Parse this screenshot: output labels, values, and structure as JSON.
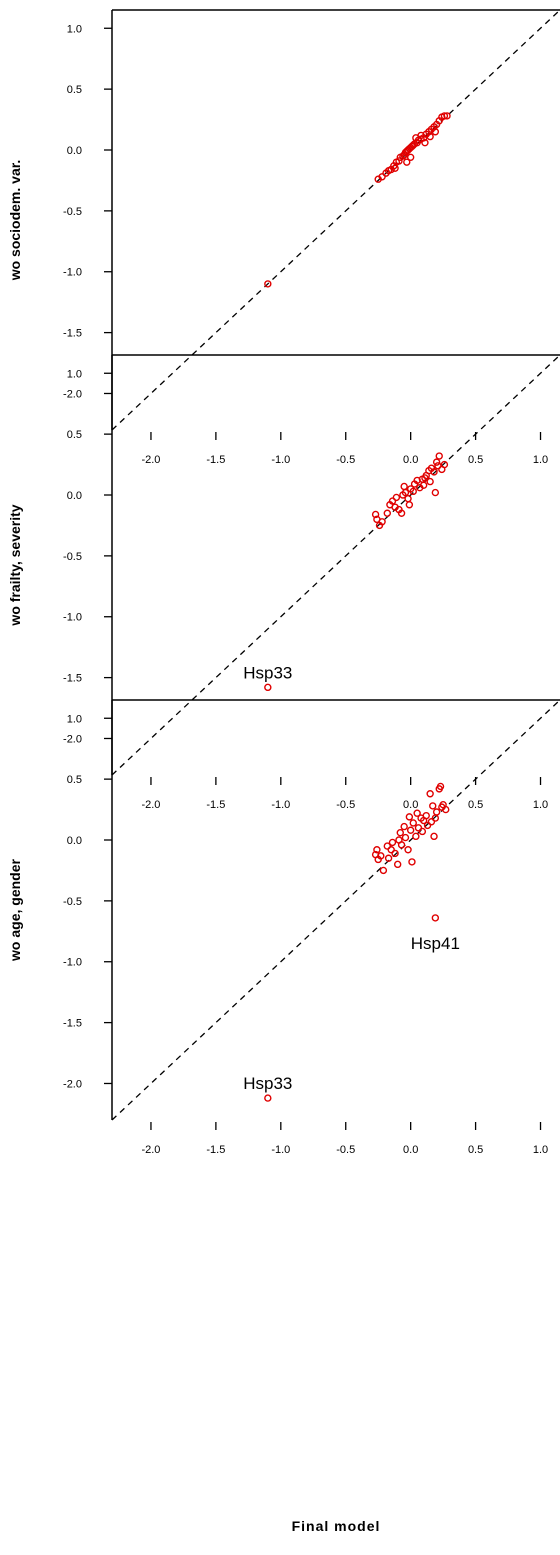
{
  "figure": {
    "xlabel": "Final model",
    "colors": {
      "points": "#e00000",
      "refline": "#000000",
      "axes": "#000000"
    }
  },
  "chart_data": [
    {
      "type": "scatter",
      "ylabel": "wo sociodem. var.",
      "xlim": [
        -2.3,
        1.15
      ],
      "ylim": [
        -2.3,
        1.15
      ],
      "xticks": [
        -2.0,
        -1.5,
        -1.0,
        -0.5,
        0.0,
        0.5,
        1.0
      ],
      "yticks": [
        1.0,
        0.5,
        0.0,
        -0.5,
        -1.0,
        -1.5,
        -2.0
      ],
      "xtick_labels": [
        "-2.0",
        "-1.5",
        "-1.0",
        "-0.5",
        "0.0",
        "0.5",
        "1.0"
      ],
      "ytick_labels": [
        "1.0",
        "0.5",
        "0.0",
        "-0.5",
        "-1.0",
        "-1.5",
        "-2.0"
      ],
      "reference_line": "y = x",
      "points": [
        [
          -1.1,
          -1.1
        ],
        [
          -0.25,
          -0.24
        ],
        [
          -0.22,
          -0.22
        ],
        [
          -0.19,
          -0.19
        ],
        [
          -0.17,
          -0.17
        ],
        [
          -0.15,
          -0.16
        ],
        [
          -0.13,
          -0.13
        ],
        [
          -0.11,
          -0.1
        ],
        [
          -0.09,
          -0.09
        ],
        [
          -0.08,
          -0.06
        ],
        [
          -0.06,
          -0.05
        ],
        [
          -0.05,
          -0.04
        ],
        [
          -0.04,
          -0.02
        ],
        [
          -0.03,
          -0.01
        ],
        [
          -0.02,
          0.0
        ],
        [
          -0.01,
          0.01
        ],
        [
          0.0,
          0.02
        ],
        [
          0.01,
          0.03
        ],
        [
          0.02,
          0.04
        ],
        [
          0.03,
          0.05
        ],
        [
          0.05,
          0.06
        ],
        [
          0.06,
          0.08
        ],
        [
          0.08,
          0.09
        ],
        [
          0.1,
          0.1
        ],
        [
          0.12,
          0.13
        ],
        [
          0.14,
          0.15
        ],
        [
          0.16,
          0.17
        ],
        [
          0.18,
          0.19
        ],
        [
          0.2,
          0.21
        ],
        [
          0.22,
          0.24
        ],
        [
          0.24,
          0.27
        ],
        [
          0.26,
          0.28
        ],
        [
          0.28,
          0.28
        ],
        [
          0.04,
          0.1
        ],
        [
          0.08,
          0.12
        ],
        [
          0.15,
          0.11
        ],
        [
          -0.03,
          -0.1
        ],
        [
          0.0,
          -0.06
        ],
        [
          -0.12,
          -0.15
        ],
        [
          0.11,
          0.06
        ],
        [
          0.19,
          0.15
        ]
      ],
      "annotations": []
    },
    {
      "type": "scatter",
      "ylabel": "wo frailty, severity",
      "xlim": [
        -2.3,
        1.15
      ],
      "ylim": [
        -2.3,
        1.15
      ],
      "xticks": [
        -2.0,
        -1.5,
        -1.0,
        -0.5,
        0.0,
        0.5,
        1.0
      ],
      "yticks": [
        1.0,
        0.5,
        0.0,
        -0.5,
        -1.0,
        -1.5,
        -2.0
      ],
      "xtick_labels": [
        "-2.0",
        "-1.5",
        "-1.0",
        "-0.5",
        "0.0",
        "0.5",
        "1.0"
      ],
      "ytick_labels": [
        "1.0",
        "0.5",
        "0.0",
        "-0.5",
        "-1.0",
        "-1.5",
        "-2.0"
      ],
      "reference_line": "y = x",
      "points": [
        [
          -1.1,
          -1.58
        ],
        [
          -0.27,
          -0.16
        ],
        [
          -0.26,
          -0.2
        ],
        [
          -0.24,
          -0.25
        ],
        [
          -0.22,
          -0.22
        ],
        [
          -0.18,
          -0.15
        ],
        [
          -0.16,
          -0.08
        ],
        [
          -0.14,
          -0.05
        ],
        [
          -0.12,
          -0.1
        ],
        [
          -0.11,
          -0.02
        ],
        [
          -0.09,
          -0.12
        ],
        [
          -0.07,
          -0.15
        ],
        [
          -0.06,
          0.0
        ],
        [
          -0.05,
          0.07
        ],
        [
          -0.04,
          0.02
        ],
        [
          -0.02,
          -0.03
        ],
        [
          0.0,
          0.05
        ],
        [
          0.02,
          0.03
        ],
        [
          0.03,
          0.09
        ],
        [
          0.05,
          0.12
        ],
        [
          0.07,
          0.06
        ],
        [
          0.09,
          0.13
        ],
        [
          0.1,
          0.08
        ],
        [
          0.12,
          0.16
        ],
        [
          0.14,
          0.2
        ],
        [
          0.15,
          0.11
        ],
        [
          0.16,
          0.22
        ],
        [
          0.18,
          0.19
        ],
        [
          0.19,
          0.02
        ],
        [
          0.2,
          0.27
        ],
        [
          0.21,
          0.24
        ],
        [
          0.22,
          0.32
        ],
        [
          0.24,
          0.21
        ],
        [
          0.26,
          0.25
        ],
        [
          0.11,
          0.14
        ],
        [
          -0.01,
          -0.08
        ]
      ],
      "annotations": [
        {
          "text": "Hsp33",
          "x": -1.1,
          "y": -1.58
        }
      ]
    },
    {
      "type": "scatter",
      "ylabel": "wo age, gender",
      "xlim": [
        -2.3,
        1.15
      ],
      "ylim": [
        -2.3,
        1.15
      ],
      "xticks": [
        -2.0,
        -1.5,
        -1.0,
        -0.5,
        0.0,
        0.5,
        1.0
      ],
      "yticks": [
        1.0,
        0.5,
        0.0,
        -0.5,
        -1.0,
        -1.5,
        -2.0
      ],
      "xtick_labels": [
        "-2.0",
        "-1.5",
        "-1.0",
        "-0.5",
        "0.0",
        "0.5",
        "1.0"
      ],
      "ytick_labels": [
        "1.0",
        "0.5",
        "0.0",
        "-0.5",
        "-1.0",
        "-1.5",
        "-2.0"
      ],
      "reference_line": "y = x",
      "points": [
        [
          -1.1,
          -2.12
        ],
        [
          0.19,
          -0.64
        ],
        [
          -0.27,
          -0.12
        ],
        [
          -0.26,
          -0.08
        ],
        [
          -0.25,
          -0.16
        ],
        [
          -0.23,
          -0.13
        ],
        [
          -0.21,
          -0.25
        ],
        [
          -0.18,
          -0.05
        ],
        [
          -0.17,
          -0.15
        ],
        [
          -0.15,
          -0.08
        ],
        [
          -0.14,
          -0.02
        ],
        [
          -0.12,
          -0.11
        ],
        [
          -0.1,
          -0.2
        ],
        [
          -0.09,
          0.0
        ],
        [
          -0.08,
          0.06
        ],
        [
          -0.07,
          -0.04
        ],
        [
          -0.05,
          0.11
        ],
        [
          -0.04,
          0.02
        ],
        [
          -0.02,
          -0.08
        ],
        [
          -0.01,
          0.19
        ],
        [
          0.0,
          0.08
        ],
        [
          0.01,
          -0.18
        ],
        [
          0.02,
          0.14
        ],
        [
          0.04,
          0.03
        ],
        [
          0.05,
          0.22
        ],
        [
          0.06,
          0.1
        ],
        [
          0.08,
          0.18
        ],
        [
          0.09,
          0.07
        ],
        [
          0.1,
          0.16
        ],
        [
          0.12,
          0.2
        ],
        [
          0.13,
          0.12
        ],
        [
          0.15,
          0.38
        ],
        [
          0.16,
          0.15
        ],
        [
          0.17,
          0.28
        ],
        [
          0.18,
          0.03
        ],
        [
          0.19,
          0.18
        ],
        [
          0.2,
          0.23
        ],
        [
          0.22,
          0.42
        ],
        [
          0.23,
          0.44
        ],
        [
          0.24,
          0.27
        ],
        [
          0.25,
          0.29
        ],
        [
          0.27,
          0.25
        ]
      ],
      "annotations": [
        {
          "text": "Hsp41",
          "x": 0.19,
          "y": -0.64
        },
        {
          "text": "Hsp33",
          "x": -1.1,
          "y": -2.12
        }
      ]
    }
  ]
}
